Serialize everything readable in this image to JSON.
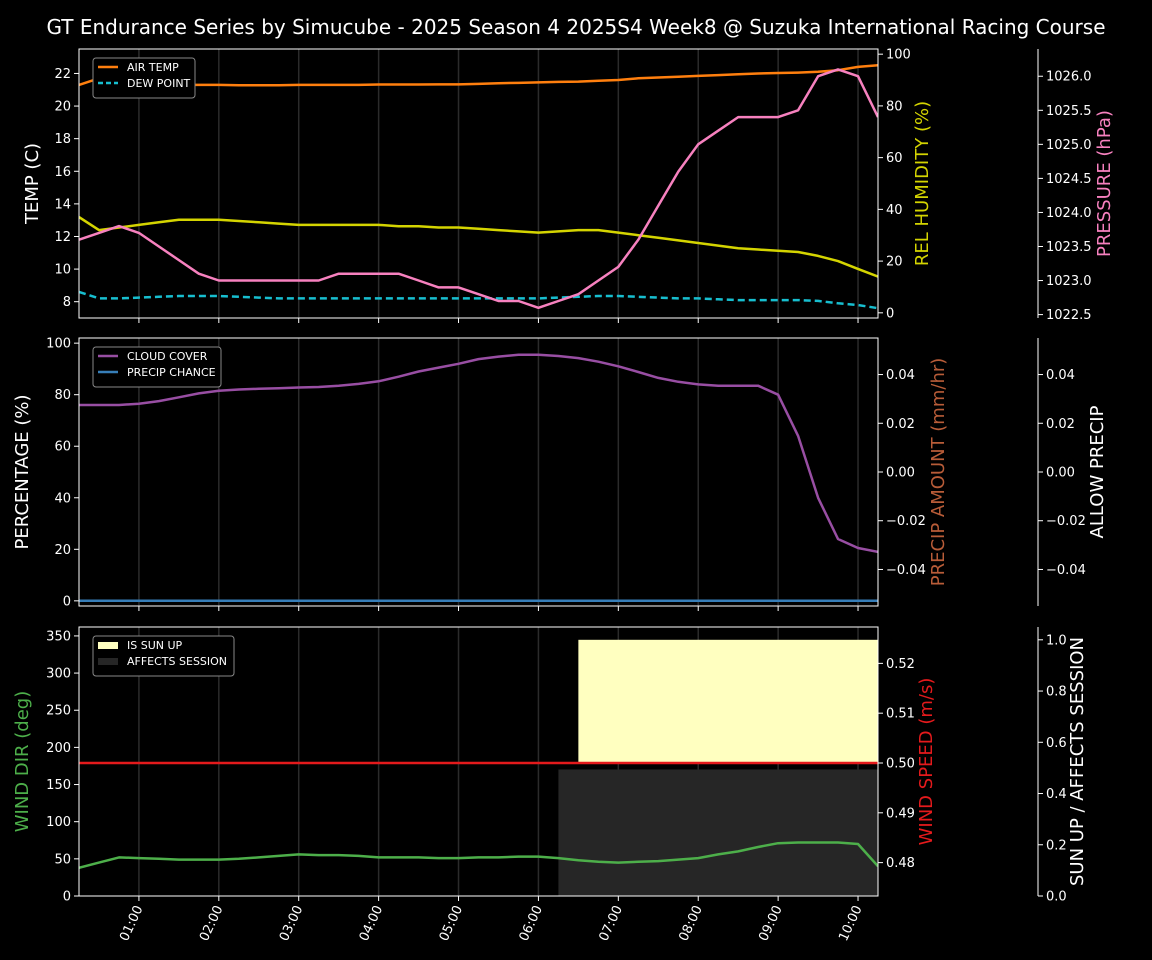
{
  "chart_data": [
    {
      "type": "line",
      "panel": "weather",
      "title": "GT Endurance Series by Simucube - 2025 Season 4 2025S4 Week8 @ Suzuka International Racing Course",
      "xlabel": "",
      "x_ticks": [
        "01:00",
        "02:00",
        "03:00",
        "04:00",
        "05:00",
        "06:00",
        "07:00",
        "08:00",
        "09:00",
        "10:00"
      ],
      "x": [
        "00:15",
        "00:30",
        "00:45",
        "01:00",
        "01:15",
        "01:30",
        "01:45",
        "02:00",
        "02:15",
        "02:30",
        "02:45",
        "03:00",
        "03:15",
        "03:30",
        "03:45",
        "04:00",
        "04:15",
        "04:30",
        "04:45",
        "05:00",
        "05:15",
        "05:30",
        "05:45",
        "06:00",
        "06:15",
        "06:30",
        "06:45",
        "07:00",
        "07:15",
        "07:30",
        "07:45",
        "08:00",
        "08:15",
        "08:30",
        "08:45",
        "09:00",
        "09:15",
        "09:30",
        "09:45",
        "10:00",
        "10:15"
      ],
      "ylabel": "TEMP (C)",
      "ylim": [
        7,
        23.5
      ],
      "y_ticks": [
        8,
        10,
        12,
        14,
        16,
        18,
        20,
        22
      ],
      "ylabel_right": "REL HUMIDITY (%)",
      "ylim_right": [
        -2,
        102
      ],
      "y_ticks_right": [
        0,
        20,
        40,
        60,
        80,
        100
      ],
      "ylabel_far_right": "PRESSURE (hPa)",
      "ylim_far_right": [
        1022.45,
        1026.4
      ],
      "y_ticks_far_right": [
        "1022.5",
        "1023.0",
        "1023.5",
        "1024.0",
        "1024.5",
        "1025.0",
        "1025.5",
        "1026.0"
      ],
      "legend_position": "top-left",
      "series": [
        {
          "name": "AIR TEMP",
          "axis": "left",
          "color": "#ff7f0e",
          "dash": "solid",
          "values": [
            21.3,
            21.7,
            21.5,
            21.4,
            21.35,
            21.3,
            21.3,
            21.3,
            21.28,
            21.28,
            21.28,
            21.3,
            21.3,
            21.3,
            21.3,
            21.32,
            21.32,
            21.32,
            21.33,
            21.33,
            21.36,
            21.4,
            21.42,
            21.45,
            21.48,
            21.5,
            21.55,
            21.6,
            21.7,
            21.75,
            21.8,
            21.85,
            21.9,
            21.95,
            22.0,
            22.03,
            22.05,
            22.1,
            22.2,
            22.4,
            22.5
          ]
        },
        {
          "name": "DEW POINT",
          "axis": "left",
          "color": "#17becf",
          "dash": "dashed",
          "values": [
            8.6,
            8.2,
            8.2,
            8.25,
            8.3,
            8.35,
            8.35,
            8.35,
            8.3,
            8.25,
            8.2,
            8.2,
            8.2,
            8.2,
            8.2,
            8.2,
            8.2,
            8.2,
            8.2,
            8.2,
            8.2,
            8.2,
            8.2,
            8.2,
            8.25,
            8.3,
            8.35,
            8.35,
            8.3,
            8.25,
            8.2,
            8.2,
            8.15,
            8.1,
            8.1,
            8.1,
            8.1,
            8.05,
            7.9,
            7.8,
            7.6
          ]
        },
        {
          "name": "REL HUMIDITY",
          "axis": "right",
          "color": "#d4d400",
          "dash": "solid",
          "values": [
            37,
            32,
            33,
            34,
            35,
            36,
            36,
            36,
            35.5,
            35,
            34.5,
            34,
            34,
            34,
            34,
            34,
            33.5,
            33.5,
            33,
            33,
            32.5,
            32,
            31.5,
            31,
            31.5,
            32,
            32,
            31,
            30,
            29,
            28,
            27,
            26,
            25,
            24.5,
            24,
            23.5,
            22,
            20,
            17,
            14
          ]
        },
        {
          "name": "PRESSURE",
          "axis": "far_right",
          "color": "#f781bf",
          "dash": "solid",
          "values": [
            1023.6,
            1023.7,
            1023.8,
            1023.7,
            1023.5,
            1023.3,
            1023.1,
            1023.0,
            1023.0,
            1023.0,
            1023.0,
            1023.0,
            1023.0,
            1023.1,
            1023.1,
            1023.1,
            1023.1,
            1023.0,
            1022.9,
            1022.9,
            1022.8,
            1022.7,
            1022.7,
            1022.6,
            1022.7,
            1022.8,
            1023.0,
            1023.2,
            1023.6,
            1024.1,
            1024.6,
            1025.0,
            1025.2,
            1025.4,
            1025.4,
            1025.4,
            1025.5,
            1026.0,
            1026.1,
            1026.0,
            1025.4
          ]
        }
      ]
    },
    {
      "type": "line",
      "panel": "precip",
      "ylabel": "PERCENTAGE (%)",
      "ylim": [
        -2,
        102
      ],
      "y_ticks": [
        0,
        20,
        40,
        60,
        80,
        100
      ],
      "ylabel_right": "PRECIP AMOUNT (mm/hr)",
      "ylim_right": [
        -0.055,
        0.055
      ],
      "y_ticks_right": [
        "−0.04",
        "−0.02",
        "0.00",
        "0.02",
        "0.04"
      ],
      "ylabel_far_right": "ALLOW PRECIP",
      "ylim_far_right": [
        -0.055,
        0.055
      ],
      "y_ticks_far_right": [
        "−0.04",
        "−0.02",
        "0.00",
        "0.02",
        "0.04"
      ],
      "legend_position": "top-left",
      "series": [
        {
          "name": "CLOUD COVER",
          "axis": "left",
          "color": "#984ea3",
          "dash": "solid",
          "values": [
            76,
            76,
            76,
            76.5,
            77.5,
            79,
            80.5,
            81.5,
            82,
            82.3,
            82.5,
            82.8,
            83,
            83.5,
            84.2,
            85.2,
            87,
            89,
            90.5,
            92,
            93.8,
            94.8,
            95.5,
            95.5,
            95,
            94.2,
            92.8,
            91,
            88.8,
            86.5,
            85,
            84,
            83.5,
            83.5,
            83.5,
            80,
            64,
            40,
            24,
            20.5,
            19
          ]
        },
        {
          "name": "PRECIP CHANCE",
          "axis": "left",
          "color": "#377eb8",
          "dash": "solid",
          "values": [
            0,
            0,
            0,
            0,
            0,
            0,
            0,
            0,
            0,
            0,
            0,
            0,
            0,
            0,
            0,
            0,
            0,
            0,
            0,
            0,
            0,
            0,
            0,
            0,
            0,
            0,
            0,
            0,
            0,
            0,
            0,
            0,
            0,
            0,
            0,
            0,
            0,
            0,
            0,
            0,
            0
          ]
        }
      ]
    },
    {
      "type": "line",
      "panel": "wind",
      "ylabel": "WIND DIR (deg)",
      "ylim": [
        0,
        362
      ],
      "y_ticks": [
        0,
        50,
        100,
        150,
        200,
        250,
        300,
        350
      ],
      "ylabel_right": "WIND SPEED (m/s)",
      "ylim_right": [
        0.4733,
        0.5273
      ],
      "y_ticks_right": [
        "0.48",
        "0.49",
        "0.50",
        "0.51",
        "0.52"
      ],
      "ylabel_far_right": "SUN UP / AFFECTS SESSION",
      "ylim_far_right": [
        0,
        1.05
      ],
      "y_ticks_far_right": [
        "0.0",
        "0.2",
        "0.4",
        "0.6",
        "0.8",
        "1.0"
      ],
      "legend_position": "top-left",
      "bands": [
        {
          "name": "IS SUN UP",
          "color": "#ffffc0",
          "x_start": "06:30",
          "x_end": "10:15",
          "level": 1.0
        },
        {
          "name": "AFFECTS SESSION",
          "color": "#262626",
          "x_start": "06:15",
          "x_end": "10:15",
          "level": 0.5
        }
      ],
      "series": [
        {
          "name": "WIND DIR",
          "axis": "left",
          "color": "#4daf4a",
          "dash": "solid",
          "values": [
            38,
            45,
            52,
            51,
            50,
            49,
            49,
            49,
            50,
            52,
            54,
            56,
            55,
            55,
            54,
            52,
            52,
            52,
            51,
            51,
            52,
            52,
            53,
            53,
            51,
            48,
            46,
            45,
            46,
            47,
            49,
            51,
            56,
            60,
            66,
            71,
            72,
            72,
            72,
            70,
            40
          ]
        },
        {
          "name": "WIND SPEED",
          "axis": "right",
          "color": "#e41a1c",
          "dash": "solid",
          "values": [
            0.5,
            0.5,
            0.5,
            0.5,
            0.5,
            0.5,
            0.5,
            0.5,
            0.5,
            0.5,
            0.5,
            0.5,
            0.5,
            0.5,
            0.5,
            0.5,
            0.5,
            0.5,
            0.5,
            0.5,
            0.5,
            0.5,
            0.5,
            0.5,
            0.5,
            0.5,
            0.5,
            0.5,
            0.5,
            0.5,
            0.5,
            0.5,
            0.5,
            0.5,
            0.5,
            0.5,
            0.5,
            0.5,
            0.5,
            0.5,
            0.5
          ]
        }
      ]
    }
  ]
}
